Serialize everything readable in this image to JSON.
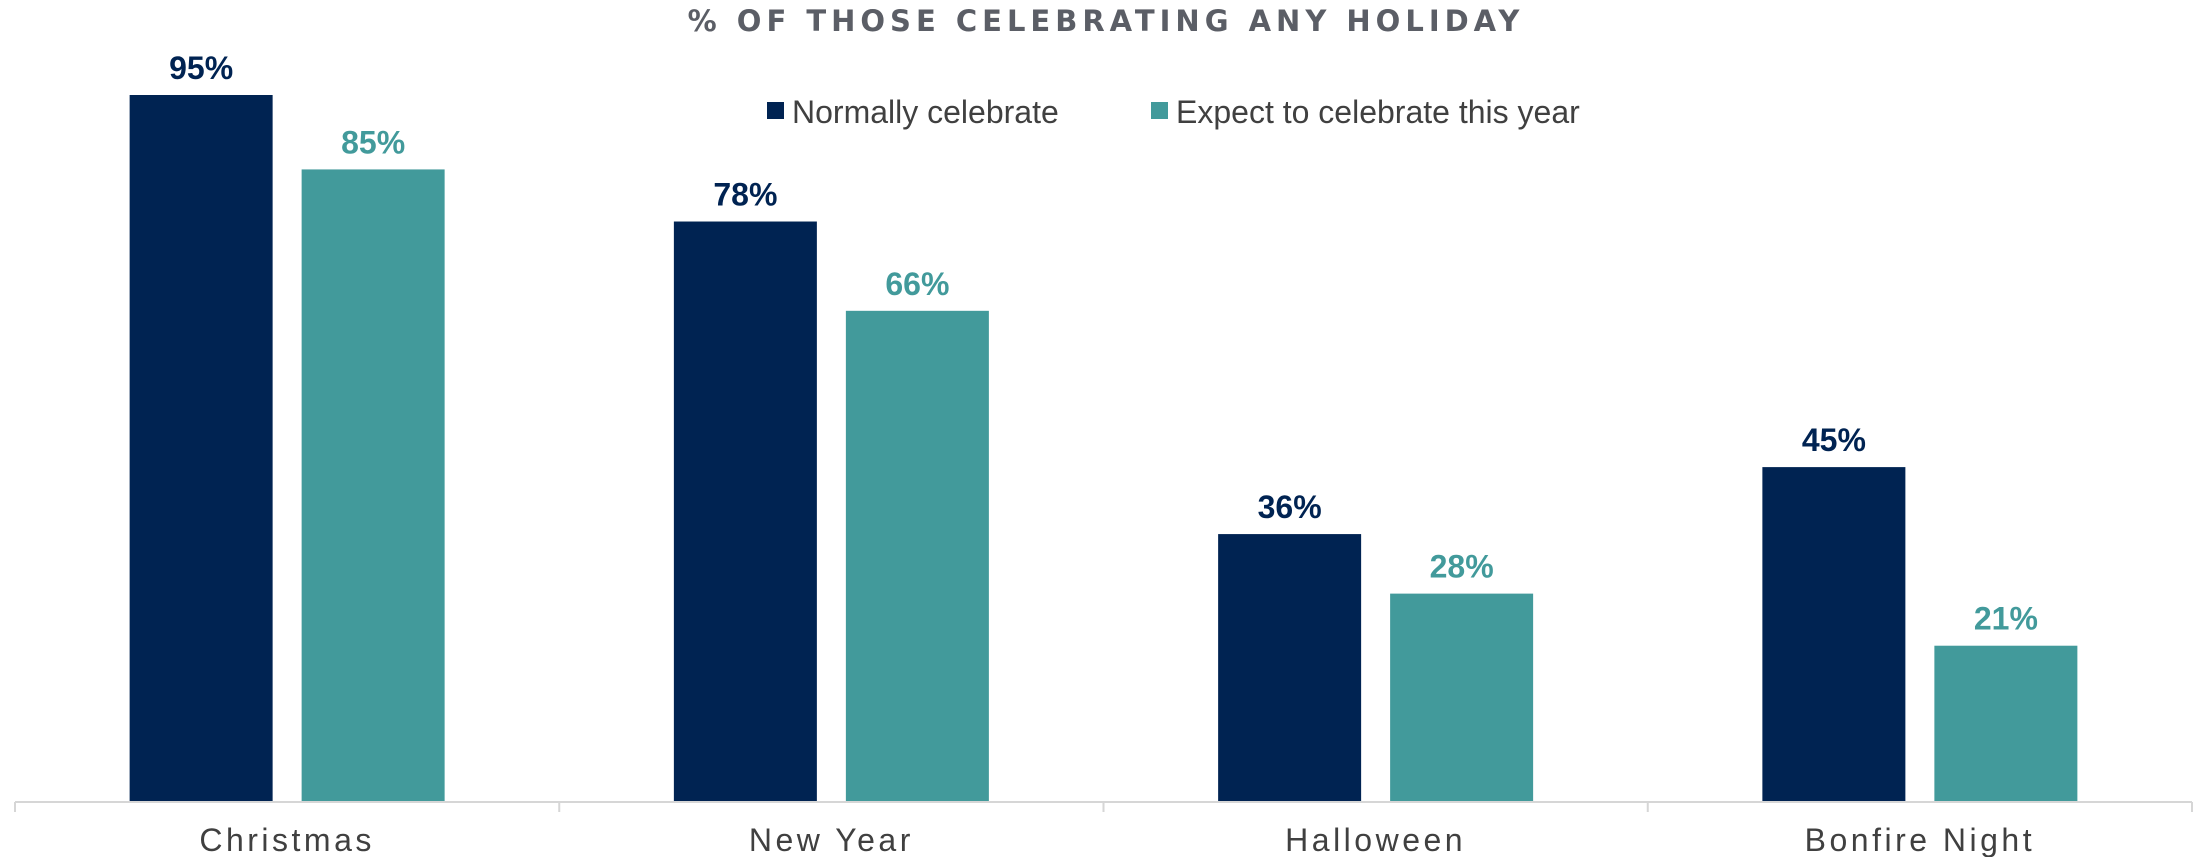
{
  "chart_data": {
    "type": "bar",
    "title": "% OF THOSE CELEBRATING ANY HOLIDAY",
    "categories": [
      "Christmas",
      "New Year",
      "Halloween",
      "Bonfire Night"
    ],
    "series": [
      {
        "name": "Normally celebrate",
        "color": "#002352",
        "values": [
          95,
          78,
          36,
          45
        ],
        "labels": [
          "95%",
          "78%",
          "36%",
          "45%"
        ]
      },
      {
        "name": "Expect to celebrate this year",
        "color": "#429a9b",
        "values": [
          85,
          66,
          28,
          21
        ],
        "labels": [
          "85%",
          "66%",
          "28%",
          "21%"
        ]
      }
    ],
    "ylim": [
      0,
      100
    ],
    "grid": false,
    "legend_position": "top-center",
    "colors": {
      "title": "#5b5e66",
      "text": "#404040",
      "axis": "#d6d6d6"
    }
  }
}
